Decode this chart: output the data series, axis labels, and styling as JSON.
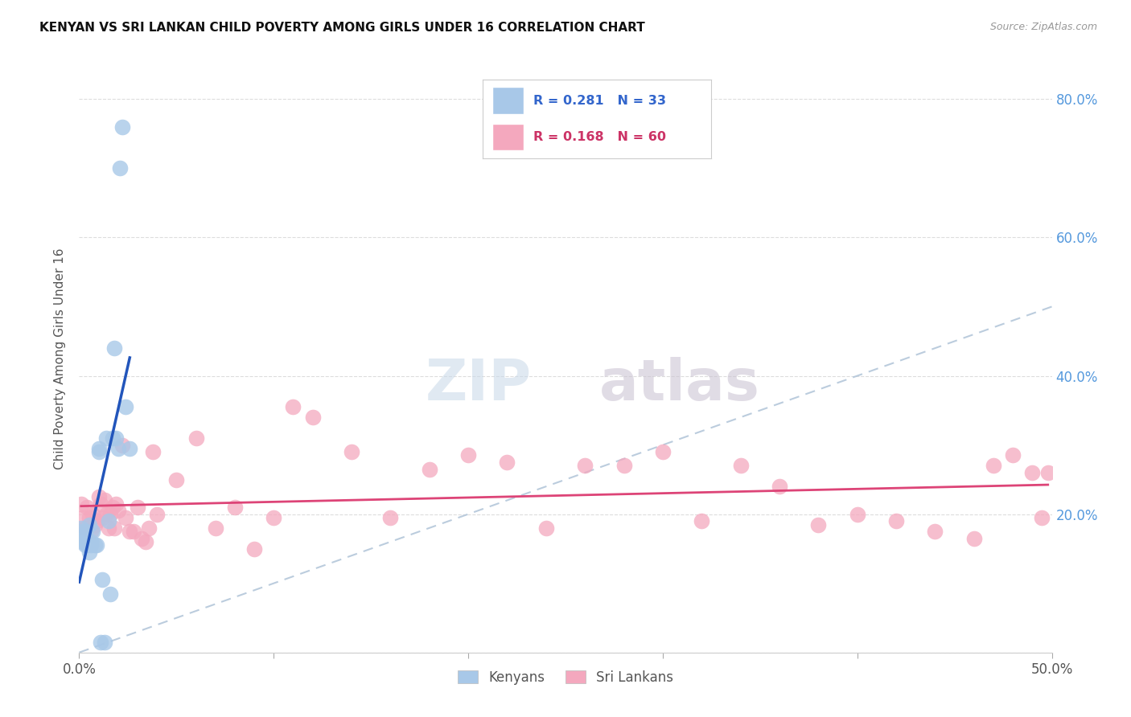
{
  "title": "KENYAN VS SRI LANKAN CHILD POVERTY AMONG GIRLS UNDER 16 CORRELATION CHART",
  "source": "Source: ZipAtlas.com",
  "ylabel": "Child Poverty Among Girls Under 16",
  "xlim": [
    0.0,
    0.5
  ],
  "ylim": [
    0.0,
    0.85
  ],
  "kenya_color": "#a8c8e8",
  "srilanka_color": "#f4a8be",
  "kenya_line_color": "#2255bb",
  "srilanka_line_color": "#dd4477",
  "dashed_line_color": "#b0c4d8",
  "kenya_R": 0.281,
  "kenya_N": 33,
  "srilanka_R": 0.168,
  "srilanka_N": 60,
  "kenya_x": [
    0.0,
    0.001,
    0.001,
    0.002,
    0.002,
    0.003,
    0.003,
    0.003,
    0.004,
    0.004,
    0.005,
    0.005,
    0.006,
    0.006,
    0.007,
    0.008,
    0.009,
    0.01,
    0.01,
    0.011,
    0.012,
    0.013,
    0.014,
    0.015,
    0.016,
    0.017,
    0.018,
    0.019,
    0.02,
    0.021,
    0.022,
    0.024,
    0.026
  ],
  "kenya_y": [
    0.175,
    0.18,
    0.165,
    0.17,
    0.16,
    0.175,
    0.155,
    0.165,
    0.155,
    0.165,
    0.145,
    0.185,
    0.155,
    0.16,
    0.175,
    0.155,
    0.155,
    0.29,
    0.295,
    0.015,
    0.105,
    0.015,
    0.31,
    0.19,
    0.085,
    0.31,
    0.44,
    0.31,
    0.295,
    0.7,
    0.76,
    0.355,
    0.295
  ],
  "srilanka_x": [
    0.001,
    0.002,
    0.003,
    0.004,
    0.005,
    0.006,
    0.007,
    0.008,
    0.009,
    0.01,
    0.011,
    0.012,
    0.013,
    0.014,
    0.015,
    0.016,
    0.017,
    0.018,
    0.019,
    0.02,
    0.022,
    0.024,
    0.026,
    0.028,
    0.03,
    0.032,
    0.034,
    0.036,
    0.038,
    0.04,
    0.05,
    0.06,
    0.07,
    0.08,
    0.09,
    0.1,
    0.11,
    0.12,
    0.14,
    0.16,
    0.18,
    0.2,
    0.22,
    0.24,
    0.26,
    0.28,
    0.3,
    0.32,
    0.34,
    0.36,
    0.38,
    0.4,
    0.42,
    0.44,
    0.46,
    0.47,
    0.48,
    0.49,
    0.495,
    0.498
  ],
  "srilanka_y": [
    0.215,
    0.195,
    0.18,
    0.21,
    0.195,
    0.175,
    0.2,
    0.185,
    0.19,
    0.225,
    0.215,
    0.195,
    0.22,
    0.2,
    0.18,
    0.2,
    0.21,
    0.18,
    0.215,
    0.205,
    0.3,
    0.195,
    0.175,
    0.175,
    0.21,
    0.165,
    0.16,
    0.18,
    0.29,
    0.2,
    0.25,
    0.31,
    0.18,
    0.21,
    0.15,
    0.195,
    0.355,
    0.34,
    0.29,
    0.195,
    0.265,
    0.285,
    0.275,
    0.18,
    0.27,
    0.27,
    0.29,
    0.19,
    0.27,
    0.24,
    0.185,
    0.2,
    0.19,
    0.175,
    0.165,
    0.27,
    0.285,
    0.26,
    0.195,
    0.26
  ],
  "watermark_zip": "ZIP",
  "watermark_atlas": "atlas",
  "background_color": "#ffffff",
  "grid_color": "#dddddd"
}
